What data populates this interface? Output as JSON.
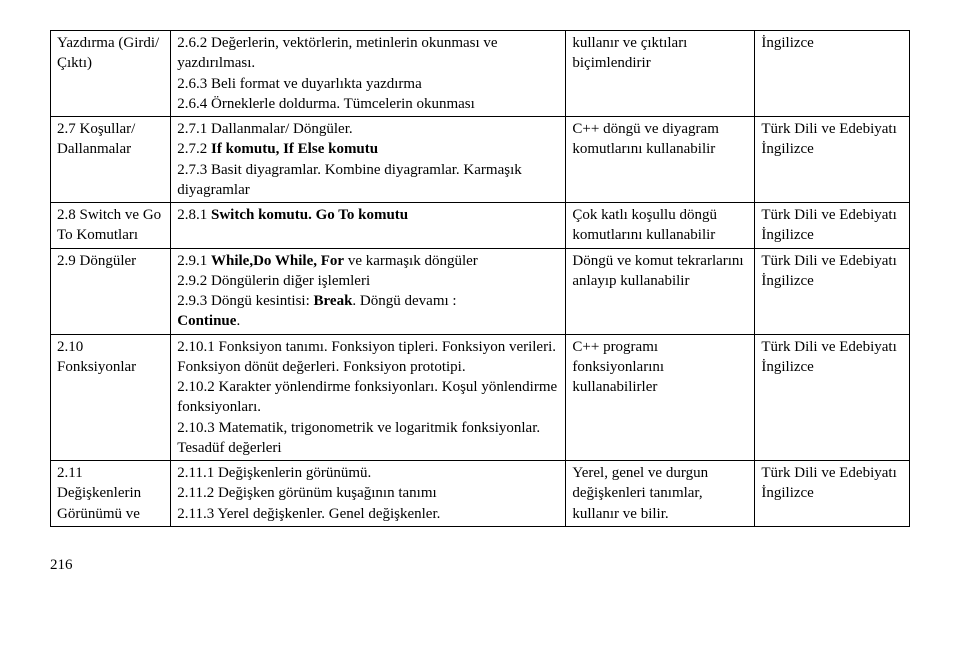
{
  "rows": [
    {
      "c1": "Yazdırma (Girdi/Çıktı)",
      "c2": [
        {
          "t": "2.6.2 Değerlerin, vektörlerin, metinlerin okunması ve yazdırılması."
        },
        {
          "t": "2.6.3 Beli format ve duyarlıkta yazdırma"
        },
        {
          "t": "2.6.4 Örneklerle doldurma. Tümcelerin okunması"
        }
      ],
      "c3": "kullanır ve çıktıları biçimlendirir",
      "c4": "İngilizce"
    },
    {
      "c1": "2.7 Koşullar/ Dallanmalar",
      "c2": [
        {
          "t": "2.7.1 Dallanmalar/ Döngüler."
        },
        {
          "t": "2.7.2 ",
          "b": "If komutu, If Else komutu"
        },
        {
          "t": "2.7.3 Basit diyagramlar. Kombine diyagramlar. Karmaşık diyagramlar"
        }
      ],
      "c3": "C++ döngü ve diyagram komutlarını kullanabilir",
      "c4": "Türk Dili ve Edebiyatı İngilizce"
    },
    {
      "c1": "2.8 Switch ve Go To Komutları",
      "c2": [
        {
          "t": "2.8.1 ",
          "b": "Switch komutu. Go To komutu"
        }
      ],
      "c3": "Çok katlı koşullu döngü komutlarını kullanabilir",
      "c4": "Türk Dili ve Edebiyatı İngilizce"
    },
    {
      "c1": "2.9 Döngüler",
      "c2": [
        {
          "t": "2.9.1 ",
          "b": "While,Do While, For",
          "t2": " ve karmaşık döngüler"
        },
        {
          "t": "2.9.2 Döngülerin diğer işlemleri"
        },
        {
          "t": "2.9.3 Döngü kesintisi: ",
          "b": "Break",
          "t2": ". Döngü devamı : "
        },
        {
          "b": "Continue",
          "t2": "."
        }
      ],
      "c3": "Döngü ve komut tekrarlarını anlayıp kullanabilir",
      "c4": "Türk Dili ve Edebiyatı İngilizce"
    },
    {
      "c1": "2.10 Fonksiyonlar",
      "c2": [
        {
          "t": "2.10.1 Fonksiyon tanımı. Fonksiyon tipleri. Fonksiyon verileri. Fonksiyon dönüt değerleri. Fonksiyon prototipi."
        },
        {
          "t": "2.10.2 Karakter yönlendirme fonksiyonları. Koşul yönlendirme fonksiyonları."
        },
        {
          "t": "2.10.3 Matematik, trigonometrik ve logaritmik fonksiyonlar. Tesadüf değerleri"
        }
      ],
      "c3": "C++ programı fonksiyonlarını kullanabilirler",
      "c4": "Türk Dili ve Edebiyatı İngilizce"
    },
    {
      "c1": "2.11 Değişkenlerin Görünümü ve",
      "c2": [
        {
          "t": "2.11.1 Değişkenlerin görünümü."
        },
        {
          "t": "2.11.2 Değişken görünüm kuşağının tanımı"
        },
        {
          "t": "2.11.3 Yerel değişkenler. Genel değişkenler."
        }
      ],
      "c3": "Yerel, genel ve durgun değişkenleri tanımlar, kullanır ve bilir.",
      "c4": "Türk Dili ve Edebiyatı İngilizce"
    }
  ],
  "page_num": "216"
}
